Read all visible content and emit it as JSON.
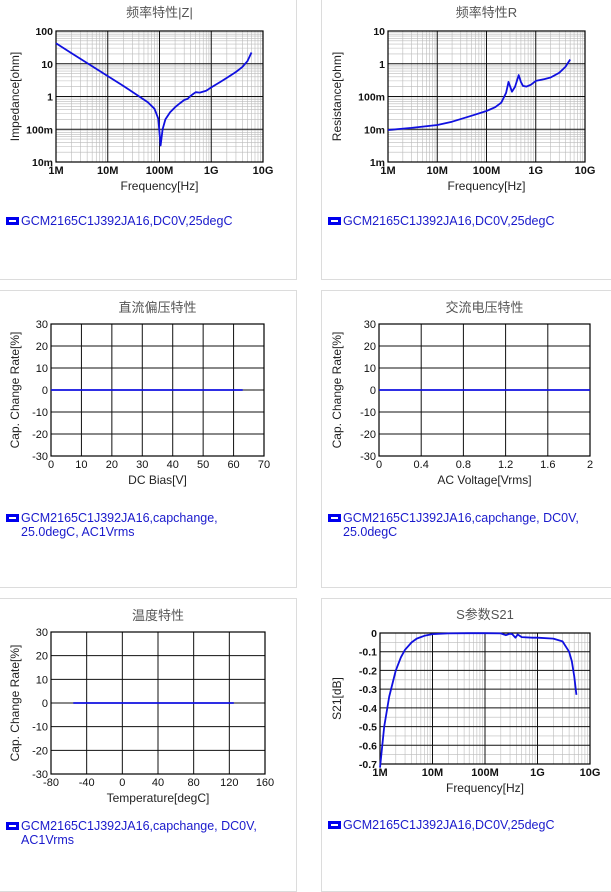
{
  "colors": {
    "series": "#1010e0",
    "grid_major": "#111111",
    "grid_minor": "#bbbbbb",
    "title": "#555555",
    "legend_text": "#1a1acc"
  },
  "panels": [
    {
      "id": "z",
      "legend": [
        "GCM2165C1J392JA16,DC0V,25degC"
      ],
      "chart_data": {
        "type": "line",
        "title": "频率特性|Z|",
        "xlabel": "Frequency[Hz]",
        "ylabel": "Impedance[ohm]",
        "xscale": "log",
        "yscale": "log",
        "xlim": [
          1000000,
          10000000000
        ],
        "ylim": [
          0.01,
          100
        ],
        "x_ticks": [
          1000000,
          10000000,
          100000000,
          1000000000,
          10000000000
        ],
        "x_tick_labels": [
          "1M",
          "10M",
          "100M",
          "1G",
          "10G"
        ],
        "y_ticks": [
          0.01,
          0.1,
          1,
          10,
          100
        ],
        "y_tick_labels": [
          "10m",
          "100m",
          "1",
          "10",
          "100"
        ],
        "grid": true,
        "series": [
          {
            "x": [
              1000000,
              2000000,
              5000000,
              10000000,
              20000000,
              40000000,
              60000000,
              80000000,
              95000000,
              105000000,
              115000000,
              130000000,
              160000000,
              200000000,
              250000000,
              300000000,
              350000000,
              400000000,
              450000000,
              500000000,
              600000000,
              800000000,
              1000000000,
              1500000000,
              2000000000,
              3000000000,
              4000000000,
              5000000000,
              6000000000
            ],
            "y": [
              42,
              21,
              8.4,
              4.2,
              2.1,
              1.02,
              0.66,
              0.42,
              0.21,
              0.032,
              0.1,
              0.2,
              0.33,
              0.47,
              0.63,
              0.78,
              0.85,
              1.05,
              1.2,
              1.35,
              1.32,
              1.5,
              1.9,
              2.8,
              3.7,
              5.6,
              8.0,
              12,
              22
            ]
          }
        ]
      }
    },
    {
      "id": "r",
      "legend": [
        "GCM2165C1J392JA16,DC0V,25degC"
      ],
      "chart_data": {
        "type": "line",
        "title": "频率特性R",
        "xlabel": "Frequency[Hz]",
        "ylabel": "Resistance[ohm]",
        "xscale": "log",
        "yscale": "log",
        "xlim": [
          1000000,
          10000000000
        ],
        "ylim": [
          0.001,
          10
        ],
        "x_ticks": [
          1000000,
          10000000,
          100000000,
          1000000000,
          10000000000
        ],
        "x_tick_labels": [
          "1M",
          "10M",
          "100M",
          "1G",
          "10G"
        ],
        "y_ticks": [
          0.001,
          0.01,
          0.1,
          1,
          10
        ],
        "y_tick_labels": [
          "1m",
          "10m",
          "100m",
          "1",
          "10"
        ],
        "grid": true,
        "series": [
          {
            "x": [
              1000000,
              3000000,
              10000000,
              20000000,
              50000000,
              100000000,
              150000000,
              200000000,
              250000000,
              280000000,
              330000000,
              380000000,
              450000000,
              500000000,
              550000000,
              650000000,
              800000000,
              1000000000,
              1500000000,
              2000000000,
              3000000000,
              4000000000,
              5000000000
            ],
            "y": [
              0.0095,
              0.011,
              0.0135,
              0.017,
              0.026,
              0.036,
              0.047,
              0.065,
              0.13,
              0.28,
              0.14,
              0.2,
              0.45,
              0.28,
              0.21,
              0.2,
              0.23,
              0.3,
              0.34,
              0.38,
              0.53,
              0.8,
              1.35
            ]
          }
        ]
      }
    },
    {
      "id": "dc",
      "legend": [
        "GCM2165C1J392JA16,capchange,",
        "25.0degC, AC1Vrms"
      ],
      "chart_data": {
        "type": "line",
        "title": "直流偏压特性",
        "xlabel": "DC Bias[V]",
        "ylabel": "Cap. Change Rate[%]",
        "xscale": "linear",
        "yscale": "linear",
        "xlim": [
          0,
          70
        ],
        "ylim": [
          -30,
          30
        ],
        "x_ticks": [
          0,
          10,
          20,
          30,
          40,
          50,
          60,
          70
        ],
        "x_tick_labels": [
          "0",
          "10",
          "20",
          "30",
          "40",
          "50",
          "60",
          "70"
        ],
        "y_ticks": [
          -30,
          -20,
          -10,
          0,
          10,
          20,
          30
        ],
        "y_tick_labels": [
          "-30",
          "-20",
          "-10",
          "0",
          "10",
          "20",
          "30"
        ],
        "grid": true,
        "series": [
          {
            "x": [
              0,
              63
            ],
            "y": [
              0,
              0
            ]
          }
        ]
      }
    },
    {
      "id": "ac",
      "legend": [
        "GCM2165C1J392JA16,capchange, DC0V,",
        "25.0degC"
      ],
      "chart_data": {
        "type": "line",
        "title": "交流电压特性",
        "xlabel": "AC Voltage[Vrms]",
        "ylabel": "Cap. Change Rate[%]",
        "xscale": "linear",
        "yscale": "linear",
        "xlim": [
          0,
          2
        ],
        "ylim": [
          -30,
          30
        ],
        "x_ticks": [
          0,
          0.4,
          0.8,
          1.2,
          1.6,
          2
        ],
        "x_tick_labels": [
          "0",
          "0.4",
          "0.8",
          "1.2",
          "1.6",
          "2"
        ],
        "y_ticks": [
          -30,
          -20,
          -10,
          0,
          10,
          20,
          30
        ],
        "y_tick_labels": [
          "-30",
          "-20",
          "-10",
          "0",
          "10",
          "20",
          "30"
        ],
        "grid": true,
        "series": [
          {
            "x": [
              0,
              2
            ],
            "y": [
              0,
              0
            ]
          }
        ]
      }
    },
    {
      "id": "temp",
      "legend": [
        "GCM2165C1J392JA16,capchange, DC0V,",
        "AC1Vrms"
      ],
      "chart_data": {
        "type": "line",
        "title": "温度特性",
        "xlabel": "Temperature[degC]",
        "ylabel": "Cap. Change Rate[%]",
        "xscale": "linear",
        "yscale": "linear",
        "xlim": [
          -80,
          160
        ],
        "ylim": [
          -30,
          30
        ],
        "x_ticks": [
          -80,
          -40,
          0,
          40,
          80,
          120,
          160
        ],
        "x_tick_labels": [
          "-80",
          "-40",
          "0",
          "40",
          "80",
          "120",
          "160"
        ],
        "y_ticks": [
          -30,
          -20,
          -10,
          0,
          10,
          20,
          30
        ],
        "y_tick_labels": [
          "-30",
          "-20",
          "-10",
          "0",
          "10",
          "20",
          "30"
        ],
        "grid": true,
        "series": [
          {
            "x": [
              -55,
              125
            ],
            "y": [
              0,
              0
            ]
          }
        ]
      }
    },
    {
      "id": "s21",
      "legend": [
        "GCM2165C1J392JA16,DC0V,25degC"
      ],
      "chart_data": {
        "type": "line",
        "title": "S参数S21",
        "xlabel": "Frequency[Hz]",
        "ylabel": "S21[dB]",
        "xscale": "log",
        "yscale": "linear",
        "xlim": [
          1000000,
          10000000000
        ],
        "ylim": [
          -0.7,
          0
        ],
        "x_ticks": [
          1000000,
          10000000,
          100000000,
          1000000000,
          10000000000
        ],
        "x_tick_labels": [
          "1M",
          "10M",
          "100M",
          "1G",
          "10G"
        ],
        "y_ticks": [
          -0.7,
          -0.6,
          -0.5,
          -0.4,
          -0.3,
          -0.2,
          -0.1,
          0
        ],
        "y_tick_labels": [
          "-0.7",
          "-0.6",
          "-0.5",
          "-0.4",
          "-0.3",
          "-0.2",
          "-0.1",
          "0"
        ],
        "grid": true,
        "series": [
          {
            "x": [
              1000000,
              1200000,
              1500000,
              2000000,
              2500000,
              3000000,
              4000000,
              5000000,
              7000000,
              10000000,
              20000000,
              50000000,
              100000000,
              200000000,
              250000000,
              300000000,
              330000000,
              380000000,
              420000000,
              500000000,
              800000000,
              1000000000,
              2000000000,
              3000000000,
              4000000000,
              4500000000,
              5000000000,
              5500000000
            ],
            "y": [
              -0.72,
              -0.5,
              -0.34,
              -0.2,
              -0.13,
              -0.09,
              -0.05,
              -0.03,
              -0.015,
              -0.006,
              -0.002,
              -0.001,
              -0.001,
              -0.002,
              -0.012,
              -0.004,
              -0.006,
              -0.025,
              -0.008,
              -0.022,
              -0.025,
              -0.025,
              -0.03,
              -0.045,
              -0.1,
              -0.15,
              -0.23,
              -0.33
            ]
          }
        ]
      }
    }
  ]
}
